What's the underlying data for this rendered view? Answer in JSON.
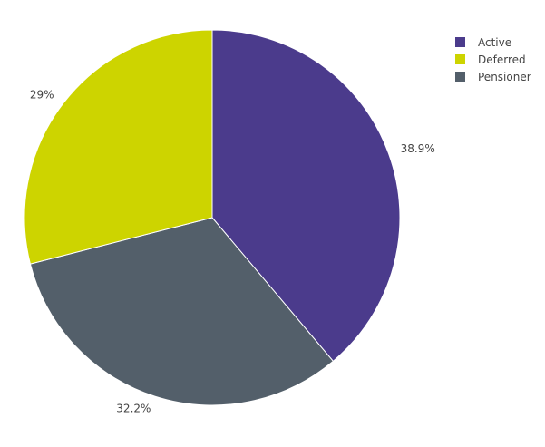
{
  "chart_data": {
    "type": "pie",
    "title": "",
    "legend_position": "top-right",
    "start_angle_deg": 0,
    "direction": "clockwise",
    "slices": [
      {
        "label": "Active",
        "value": 38.9,
        "display": "38.9%",
        "color": "#4b3b8c"
      },
      {
        "label": "Pensioner",
        "value": 32.2,
        "display": "32.2%",
        "color": "#535f6a"
      },
      {
        "label": "Deferred",
        "value": 29.0,
        "display": "29%",
        "color": "#cdd400"
      }
    ],
    "legend": [
      {
        "label": "Active",
        "color": "#4b3b8c"
      },
      {
        "label": "Deferred",
        "color": "#cdd400"
      },
      {
        "label": "Pensioner",
        "color": "#535f6a"
      }
    ]
  }
}
